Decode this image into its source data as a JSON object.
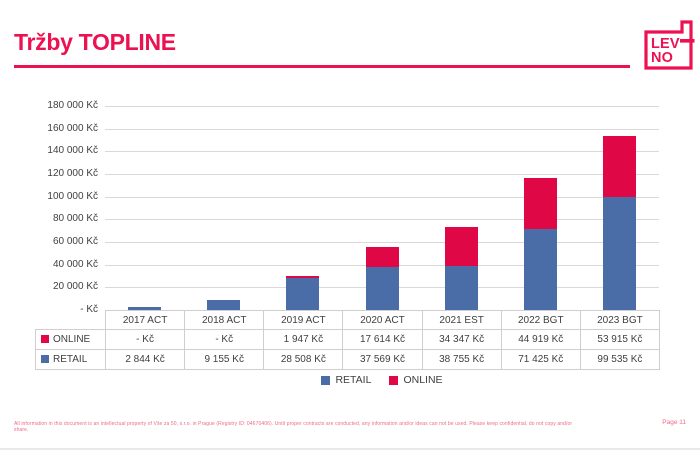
{
  "header": {
    "title": "Tržby TOPLINE",
    "logo": {
      "line1": "LEV",
      "line2": "NO"
    }
  },
  "colors": {
    "brand_pink": "#EC1151",
    "bar_red": "#E00747",
    "bar_blue": "#4A6DA7",
    "gridline": "#D9D9D9",
    "axis_text": "#404040",
    "table_border": "#D0CECE"
  },
  "chart_data": {
    "type": "bar",
    "stacked": true,
    "title": "Tržby TOPLINE",
    "categories": [
      "2017 ACT",
      "2018 ACT",
      "2019 ACT",
      "2020 ACT",
      "2021 EST",
      "2022 BGT",
      "2023 BGT"
    ],
    "series": [
      {
        "name": "RETAIL",
        "color": "#4A6DA7",
        "values": [
          2844,
          9155,
          28508,
          37569,
          38755,
          71425,
          99535
        ],
        "labels": [
          "2 844 Kč",
          "9 155 Kč",
          "28 508 Kč",
          "37 569 Kč",
          "38 755 Kč",
          "71 425 Kč",
          "99 535 Kč"
        ]
      },
      {
        "name": "ONLINE",
        "color": "#E00747",
        "values": [
          0,
          0,
          1947,
          17614,
          34347,
          44919,
          53915
        ],
        "labels": [
          "- Kč",
          "- Kč",
          "1 947 Kč",
          "17 614 Kč",
          "34 347 Kč",
          "44 919 Kč",
          "53 915 Kč"
        ]
      }
    ],
    "stack_order_bottom_to_top": [
      "RETAIL",
      "ONLINE"
    ],
    "y_axis": {
      "min": 0,
      "max": 180000,
      "step": 20000,
      "tick_labels": [
        "180 000 Kč",
        "160 000 Kč",
        "140 000 Kč",
        "120 000 Kč",
        "100 000 Kč",
        "80 000 Kč",
        "60 000 Kč",
        "40 000 Kč",
        "20 000 Kč",
        "- Kč"
      ]
    },
    "grid": true,
    "data_table_below_chart": true,
    "table_row_order_top_to_bottom": [
      "ONLINE",
      "RETAIL"
    ],
    "legend": {
      "position": "bottom",
      "entries": [
        "RETAIL",
        "ONLINE"
      ]
    }
  },
  "footer": {
    "disclaimer": "All information in this document is an intellectual property of Vše za 50, s.r.o. in Prague (Registry ID: 04670406). Until proper contracts are conducted, any information and/or ideas can not be used. Please keep confidential, do not copy and/or share.",
    "page_label": "Page 11"
  }
}
